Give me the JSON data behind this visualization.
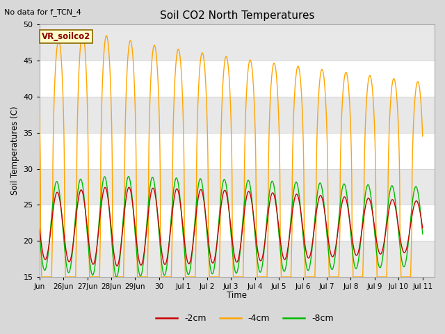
{
  "title": "Soil CO2 North Temperatures",
  "no_data_label": "No data for f_TCN_4",
  "ylabel": "Soil Temperatures (C)",
  "xlabel": "Time",
  "ylim": [
    15,
    50
  ],
  "tick_labels": [
    "Jun",
    "26Jun",
    "27Jun",
    "28Jun",
    "29Jun",
    "30",
    "Jul 1",
    "Jul 2",
    "Jul 3",
    "Jul 4",
    "Jul 5",
    "Jul 6",
    "Jul 7",
    "Jul 8",
    "Jul 9",
    "Jul 10",
    "Jul 11"
  ],
  "legend_box_label": "VR_soilco2",
  "legend_entries": [
    "-2cm",
    "-4cm",
    "-8cm"
  ],
  "legend_colors": [
    "#cc0000",
    "#ffa500",
    "#00bb00"
  ],
  "bg_color": "#d8d8d8",
  "plot_bg_color": "#ffffff",
  "band_colors": [
    "#e8e8e8",
    "#ffffff"
  ],
  "grid_line_color": "#cccccc",
  "line_color_2cm": "#cc0000",
  "line_color_4cm": "#ffa500",
  "line_color_8cm": "#00bb00",
  "n_days": 16,
  "samples_per_day": 200,
  "band_boundaries": [
    15,
    20,
    25,
    30,
    35,
    40,
    45,
    50
  ]
}
